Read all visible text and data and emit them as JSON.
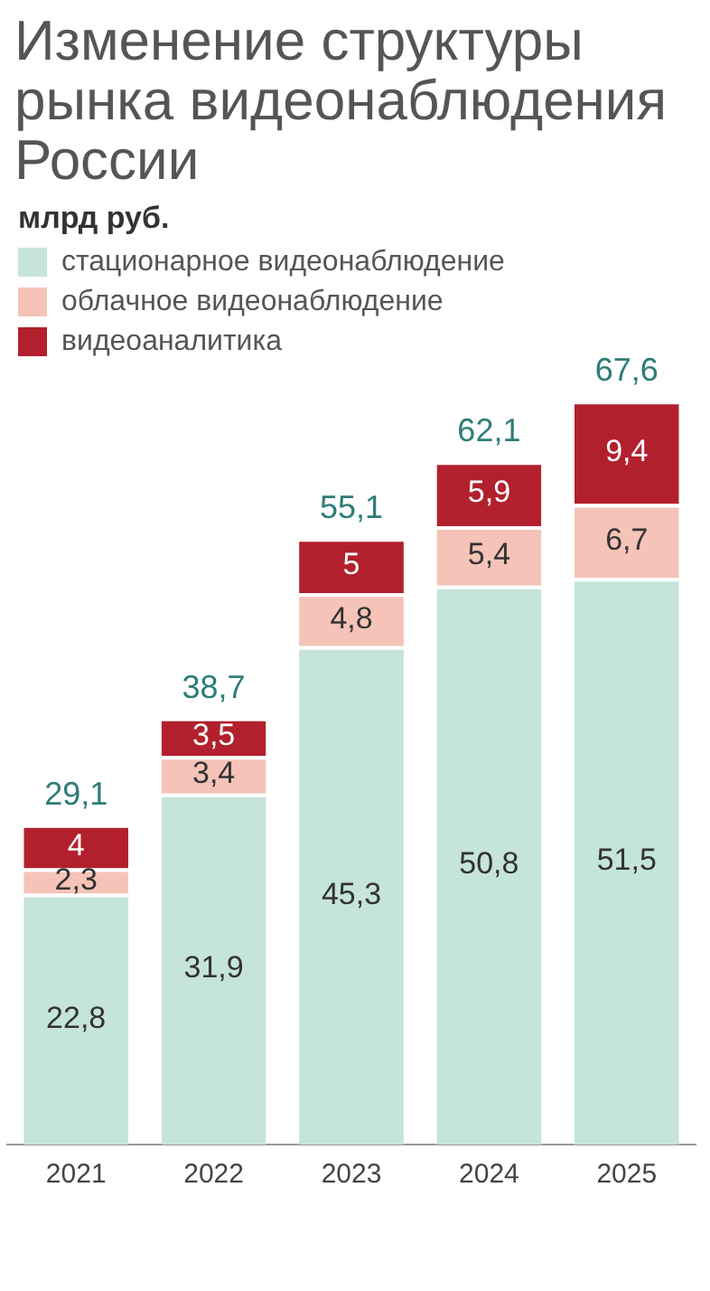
{
  "chart_data": {
    "type": "bar",
    "title": "Изменение структуры рынка видеонаблюдения России",
    "subtitle": "млрд руб.",
    "categories": [
      "2021",
      "2022",
      "2023",
      "2024",
      "2025"
    ],
    "stacked": true,
    "legend": "top left",
    "grid": false,
    "series": [
      {
        "name": "стационарное видеонаблюдение",
        "color": "#c5e4da",
        "values": [
          22.8,
          31.9,
          45.3,
          50.8,
          51.5
        ],
        "value_labels": [
          "22,8",
          "31,9",
          "45,3",
          "50,8",
          "51,5"
        ]
      },
      {
        "name": "облачное видеонаблюдение",
        "color": "#f5c3b8",
        "values": [
          2.3,
          3.4,
          4.8,
          5.4,
          6.7
        ],
        "value_labels": [
          "2,3",
          "3,4",
          "4,8",
          "5,4",
          "6,7"
        ]
      },
      {
        "name": "видеоаналитика",
        "color": "#b3202d",
        "values": [
          4,
          3.5,
          5,
          5.9,
          9.4
        ],
        "value_labels": [
          "4",
          "3,5",
          "5",
          "5,9",
          "9,4"
        ]
      }
    ],
    "totals": [
      "29,1",
      "38,7",
      "55,1",
      "62,1",
      "67,6"
    ]
  }
}
